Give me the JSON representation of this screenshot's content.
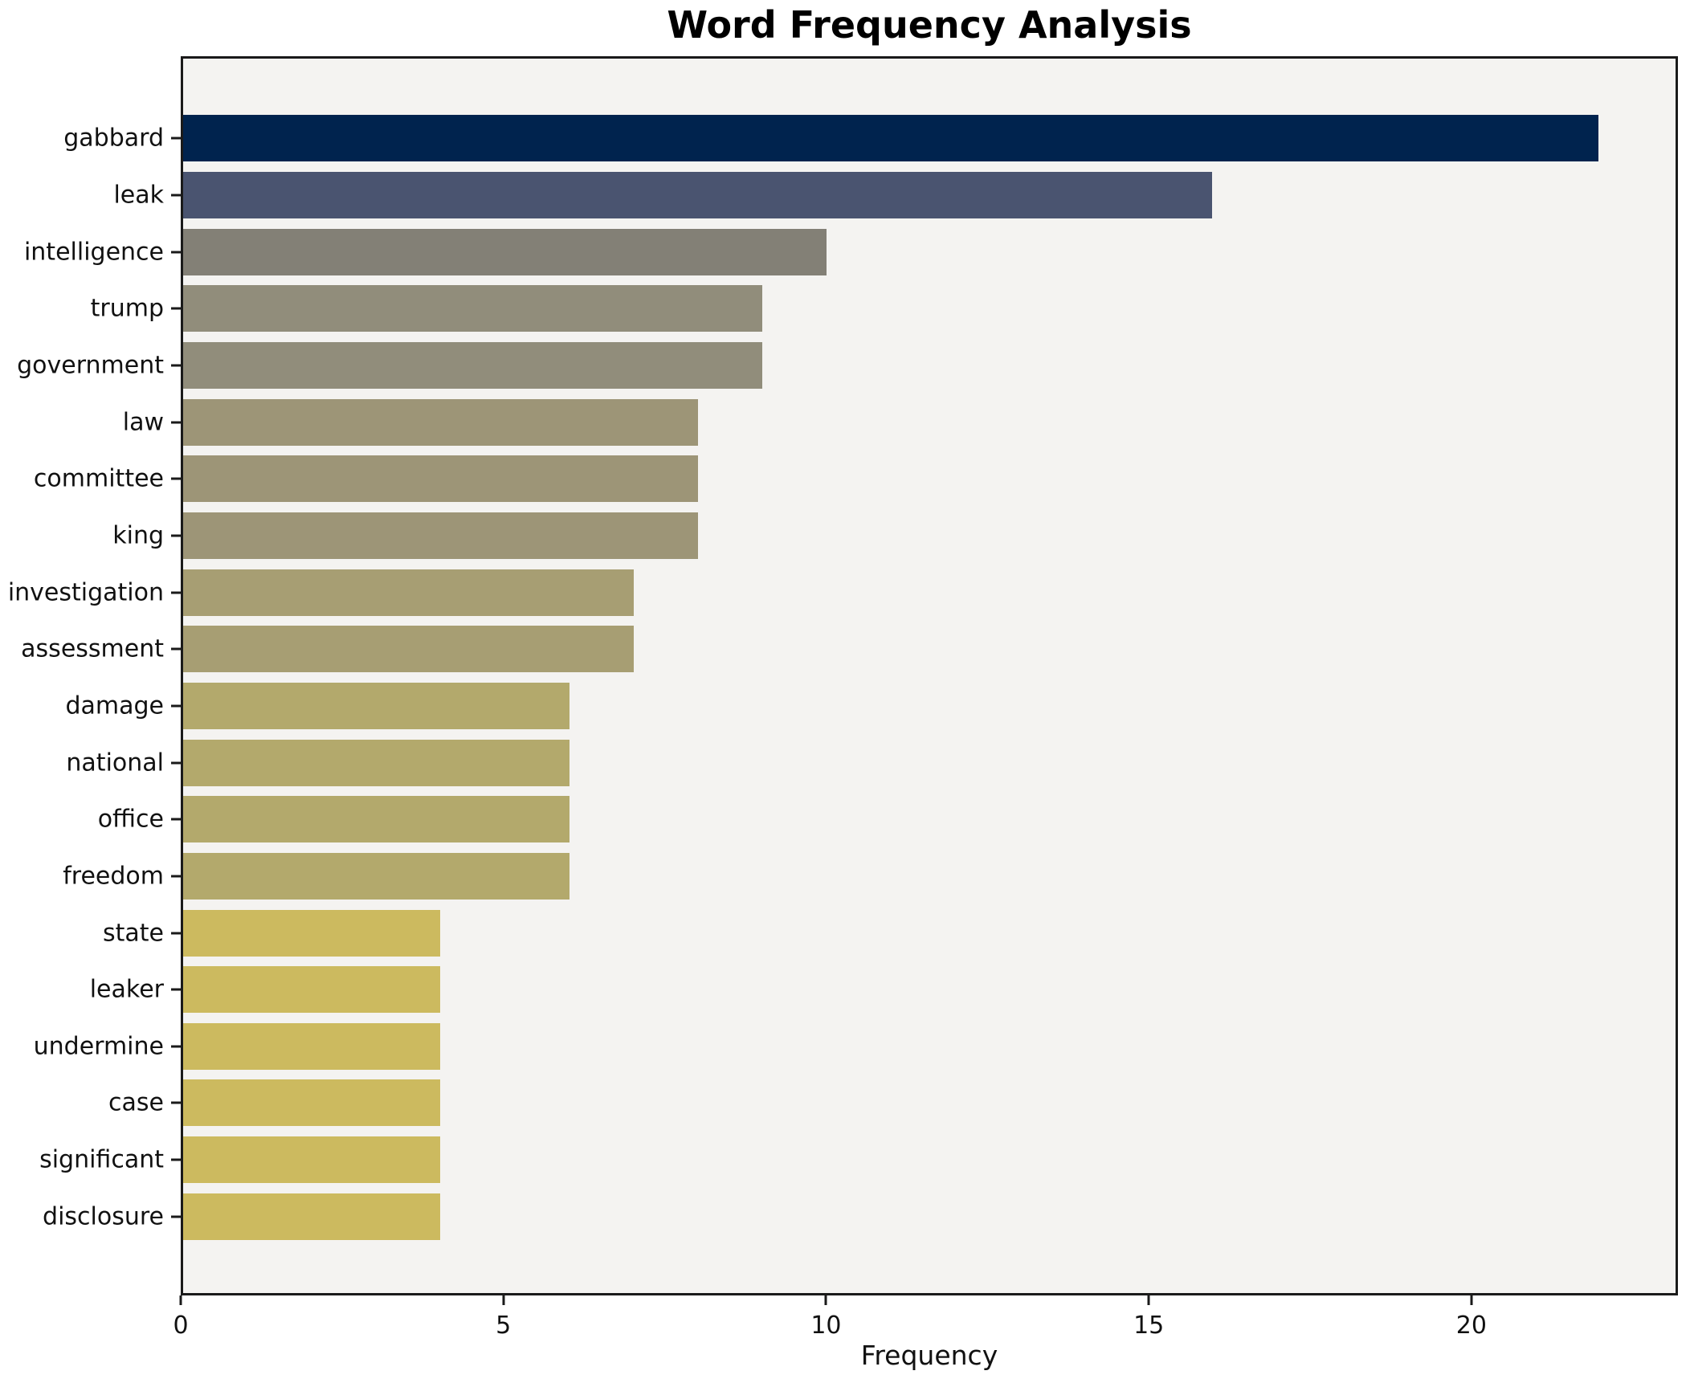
{
  "title": "Word Frequency Analysis",
  "colors": {
    "figure_bg": "#ffffff",
    "plot_bg": "#f4f3f1",
    "spine": "#1a1a1a",
    "text": "#111111"
  },
  "chart_data": {
    "type": "bar",
    "orientation": "horizontal",
    "title": "Word Frequency Analysis",
    "xlabel": "Frequency",
    "ylabel": "",
    "xlim": [
      0,
      23.2
    ],
    "xticks": [
      0,
      5,
      10,
      15,
      20
    ],
    "grid": false,
    "legend": false,
    "categories": [
      "gabbard",
      "leak",
      "intelligence",
      "trump",
      "government",
      "law",
      "committee",
      "king",
      "investigation",
      "assessment",
      "damage",
      "national",
      "office",
      "freedom",
      "state",
      "leaker",
      "undermine",
      "case",
      "significant",
      "disclosure"
    ],
    "values": [
      22,
      16,
      10,
      9,
      9,
      8,
      8,
      8,
      7,
      7,
      6,
      6,
      6,
      6,
      4,
      4,
      4,
      4,
      4,
      4
    ],
    "bar_colors": [
      "#00234e",
      "#4a5470",
      "#838076",
      "#918d7b",
      "#918d7b",
      "#9d9577",
      "#9d9577",
      "#9d9577",
      "#a79e73",
      "#a79e73",
      "#b3a96c",
      "#b3a96c",
      "#b3a96c",
      "#b3a96c",
      "#ccba5f",
      "#ccba5f",
      "#ccba5f",
      "#ccba5f",
      "#ccba5f",
      "#ccba5f"
    ]
  }
}
